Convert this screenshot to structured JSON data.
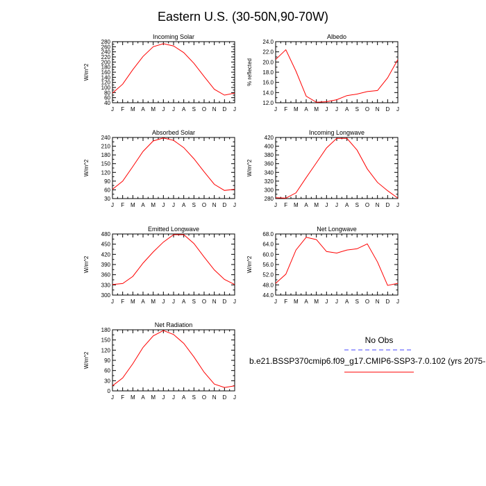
{
  "figure": {
    "title": "Eastern U.S. (30-50N,90-70W)"
  },
  "legend": {
    "obs_label": "No Obs",
    "obs_color": "#4444ff",
    "model_label": "b.e21.BSSP370cmip6.f09_g17.CMIP6-SSP3-7.0.102 (yrs 2075-",
    "model_color": "#ff0000"
  },
  "chart_data": [
    {
      "type": "line",
      "title": "Incoming Solar",
      "ylabel": "W/m^2",
      "categories": [
        "J",
        "F",
        "M",
        "A",
        "M",
        "J",
        "J",
        "A",
        "S",
        "O",
        "N",
        "D",
        "J"
      ],
      "ylim": [
        40,
        280
      ],
      "yticks": [
        "40",
        "60",
        "80",
        "100",
        "120",
        "140",
        "160",
        "180",
        "200",
        "220",
        "240",
        "260",
        "280"
      ],
      "ytick_values": [
        40,
        60,
        80,
        100,
        120,
        140,
        160,
        180,
        200,
        220,
        240,
        260,
        280
      ],
      "series": [
        {
          "color": "#ff0000",
          "values": [
            78,
            113,
            170,
            222,
            260,
            272,
            263,
            237,
            195,
            143,
            93,
            70,
            78
          ]
        }
      ]
    },
    {
      "type": "line",
      "title": "Albedo",
      "ylabel": "% reflected",
      "categories": [
        "J",
        "F",
        "M",
        "A",
        "M",
        "J",
        "J",
        "A",
        "S",
        "O",
        "N",
        "D",
        "J"
      ],
      "ylim": [
        12,
        24
      ],
      "yticks": [
        "12.0",
        "14.0",
        "16.0",
        "18.0",
        "20.0",
        "22.0",
        "24.0"
      ],
      "ytick_values": [
        12,
        14,
        16,
        18,
        20,
        22,
        24
      ],
      "series": [
        {
          "color": "#ff0000",
          "values": [
            20.5,
            22.4,
            18.2,
            13.3,
            12.1,
            12.2,
            12.6,
            13.4,
            13.7,
            14.2,
            14.4,
            16.9,
            20.5
          ]
        }
      ]
    },
    {
      "type": "line",
      "title": "Absorbed Solar",
      "ylabel": "W/m^2",
      "categories": [
        "J",
        "F",
        "M",
        "A",
        "M",
        "J",
        "J",
        "A",
        "S",
        "O",
        "N",
        "D",
        "J"
      ],
      "ylim": [
        30,
        240
      ],
      "yticks": [
        "30",
        "60",
        "90",
        "120",
        "150",
        "180",
        "210",
        "240"
      ],
      "ytick_values": [
        30,
        60,
        90,
        120,
        150,
        180,
        210,
        240
      ],
      "series": [
        {
          "color": "#ff0000",
          "values": [
            62,
            90,
            140,
            192,
            228,
            238,
            230,
            205,
            167,
            122,
            79,
            58,
            62
          ]
        }
      ]
    },
    {
      "type": "line",
      "title": "Incoming Longwave",
      "ylabel": "W/m^2",
      "categories": [
        "J",
        "F",
        "M",
        "A",
        "M",
        "J",
        "J",
        "A",
        "S",
        "O",
        "N",
        "D",
        "J"
      ],
      "ylim": [
        280,
        420
      ],
      "yticks": [
        "280",
        "300",
        "320",
        "340",
        "360",
        "380",
        "400",
        "420"
      ],
      "ytick_values": [
        280,
        300,
        320,
        340,
        360,
        380,
        400,
        420
      ],
      "series": [
        {
          "color": "#ff0000",
          "values": [
            282,
            281,
            293,
            328,
            362,
            396,
            418,
            418,
            391,
            348,
            317,
            298,
            281
          ]
        }
      ]
    },
    {
      "type": "line",
      "title": "Emitted Longwave",
      "ylabel": "W/m^2",
      "categories": [
        "J",
        "F",
        "M",
        "A",
        "M",
        "J",
        "J",
        "A",
        "S",
        "O",
        "N",
        "D",
        "J"
      ],
      "ylim": [
        300,
        480
      ],
      "yticks": [
        "300",
        "330",
        "360",
        "390",
        "420",
        "450",
        "480"
      ],
      "ytick_values": [
        300,
        330,
        360,
        390,
        420,
        450,
        480
      ],
      "series": [
        {
          "color": "#ff0000",
          "values": [
            331,
            334,
            355,
            394,
            427,
            456,
            478,
            478,
            452,
            412,
            374,
            346,
            331
          ]
        }
      ]
    },
    {
      "type": "line",
      "title": "Net Longwave",
      "ylabel": "W/m^2",
      "categories": [
        "J",
        "F",
        "M",
        "A",
        "M",
        "J",
        "J",
        "A",
        "S",
        "O",
        "N",
        "D",
        "J"
      ],
      "ylim": [
        44,
        68
      ],
      "yticks": [
        "44.0",
        "48.0",
        "52.0",
        "56.0",
        "60.0",
        "64.0",
        "68.0"
      ],
      "ytick_values": [
        44,
        48,
        52,
        56,
        60,
        64,
        68
      ],
      "series": [
        {
          "color": "#ff0000",
          "values": [
            48.6,
            52.2,
            61.7,
            66.7,
            65.8,
            61.1,
            60.5,
            61.7,
            62.2,
            64.1,
            57.0,
            47.8,
            48.6
          ]
        }
      ]
    },
    {
      "type": "line",
      "title": "Net Radiation",
      "ylabel": "W/m^2",
      "categories": [
        "J",
        "F",
        "M",
        "A",
        "M",
        "J",
        "J",
        "A",
        "S",
        "O",
        "N",
        "D",
        "J"
      ],
      "ylim": [
        0,
        180
      ],
      "yticks": [
        "0",
        "30",
        "60",
        "90",
        "120",
        "150",
        "180"
      ],
      "ytick_values": [
        0,
        30,
        60,
        90,
        120,
        150,
        180
      ],
      "series": [
        {
          "color": "#ff0000",
          "values": [
            15,
            38,
            80,
            128,
            162,
            178,
            166,
            140,
            100,
            55,
            20,
            10,
            15
          ]
        }
      ]
    }
  ]
}
